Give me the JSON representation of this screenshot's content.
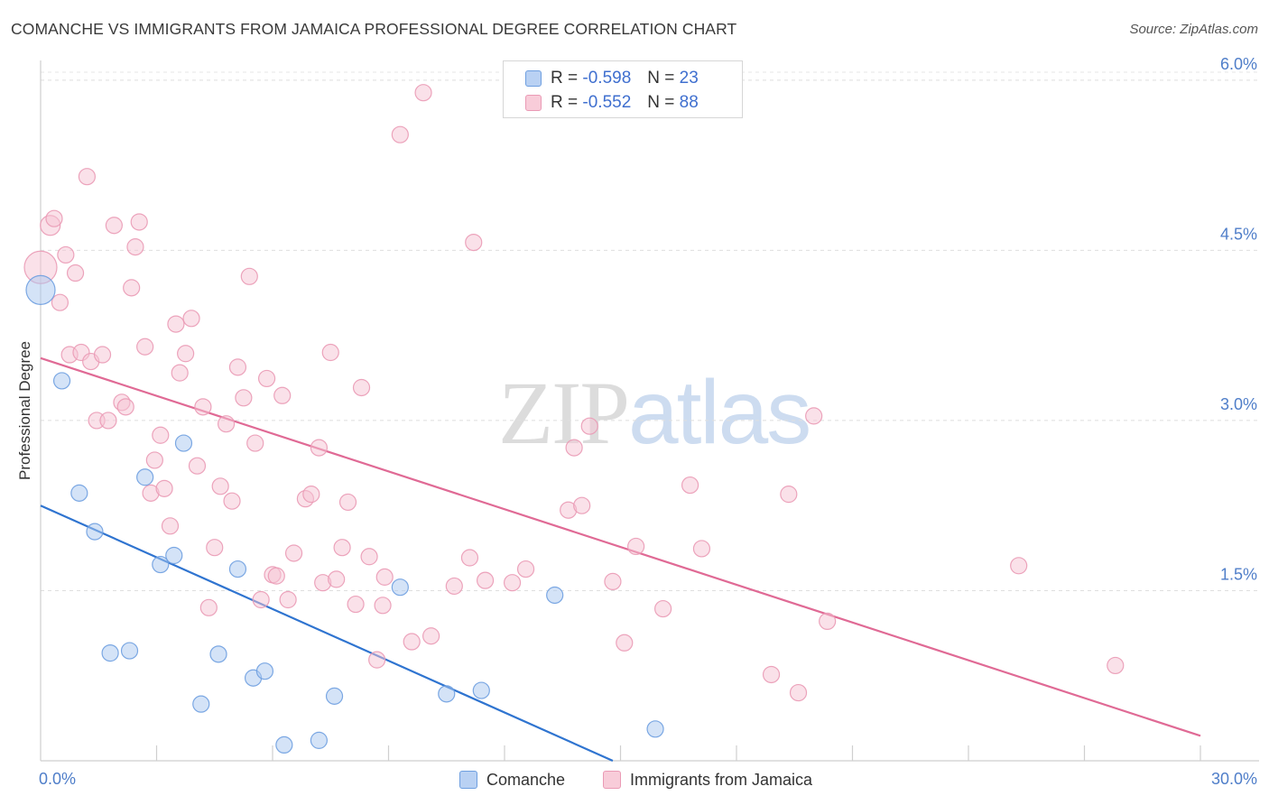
{
  "chart_data": {
    "type": "scatter",
    "title": "COMANCHE VS IMMIGRANTS FROM JAMAICA PROFESSIONAL DEGREE CORRELATION CHART",
    "source": "Source: ZipAtlas.com",
    "ylabel": "Professional Degree",
    "xlabel": "",
    "xlim": [
      0,
      30
    ],
    "ylim": [
      0,
      6.15
    ],
    "x_tick_labels": [
      "0.0%",
      "30.0%"
    ],
    "y_ticks": [
      {
        "value": 1.5,
        "label": "1.5%"
      },
      {
        "value": 3.0,
        "label": "3.0%"
      },
      {
        "value": 4.5,
        "label": "4.5%"
      },
      {
        "value": 6.0,
        "label": "6.0%"
      }
    ],
    "grid": "horizontal dashed",
    "watermark": {
      "part1": "ZIP",
      "part2": "atlas"
    },
    "legend": [
      {
        "r_label": "R =",
        "r_value": "-0.598",
        "n_label": "N =",
        "n_value": "23"
      },
      {
        "r_label": "R =",
        "r_value": "-0.552",
        "n_label": "N =",
        "n_value": "88"
      }
    ],
    "series": [
      {
        "name": "Comanche",
        "color": "#6e9fe0",
        "fill": "#a9c8f0",
        "line_color": "#2f74d0",
        "trend": [
          [
            0,
            2.25
          ],
          [
            14.8,
            0.0
          ]
        ],
        "points": [
          [
            0.0,
            4.15
          ],
          [
            0.55,
            3.35
          ],
          [
            1.0,
            2.36
          ],
          [
            1.4,
            2.02
          ],
          [
            1.8,
            0.95
          ],
          [
            2.3,
            0.97
          ],
          [
            2.7,
            2.5
          ],
          [
            3.1,
            1.73
          ],
          [
            3.45,
            1.81
          ],
          [
            3.7,
            2.8
          ],
          [
            4.15,
            0.5
          ],
          [
            4.6,
            0.94
          ],
          [
            5.1,
            1.69
          ],
          [
            5.5,
            0.73
          ],
          [
            5.8,
            0.79
          ],
          [
            6.3,
            0.14
          ],
          [
            7.2,
            0.18
          ],
          [
            7.6,
            0.57
          ],
          [
            9.3,
            1.53
          ],
          [
            10.5,
            0.59
          ],
          [
            11.4,
            0.62
          ],
          [
            13.3,
            1.46
          ],
          [
            15.9,
            0.28
          ]
        ]
      },
      {
        "name": "Immigrants from Jamaica",
        "color": "#ea9ab5",
        "fill": "#f6c3d3",
        "line_color": "#e06a95",
        "trend": [
          [
            0,
            3.55
          ],
          [
            30,
            0.22
          ]
        ],
        "points": [
          [
            0.0,
            4.35
          ],
          [
            0.25,
            4.72
          ],
          [
            0.35,
            4.78
          ],
          [
            0.5,
            4.04
          ],
          [
            0.65,
            4.46
          ],
          [
            0.9,
            4.3
          ],
          [
            1.2,
            5.15
          ],
          [
            0.75,
            3.58
          ],
          [
            1.05,
            3.6
          ],
          [
            1.3,
            3.52
          ],
          [
            1.45,
            3.0
          ],
          [
            1.6,
            3.58
          ],
          [
            1.75,
            3.0
          ],
          [
            1.9,
            4.72
          ],
          [
            2.1,
            3.16
          ],
          [
            2.2,
            3.12
          ],
          [
            2.35,
            4.17
          ],
          [
            2.45,
            4.53
          ],
          [
            2.55,
            4.75
          ],
          [
            2.7,
            3.65
          ],
          [
            2.85,
            2.36
          ],
          [
            2.95,
            2.65
          ],
          [
            3.1,
            2.87
          ],
          [
            3.2,
            2.4
          ],
          [
            3.35,
            2.07
          ],
          [
            3.5,
            3.85
          ],
          [
            3.6,
            3.42
          ],
          [
            3.75,
            3.59
          ],
          [
            3.9,
            3.9
          ],
          [
            4.05,
            2.6
          ],
          [
            4.2,
            3.12
          ],
          [
            4.35,
            1.35
          ],
          [
            4.5,
            1.88
          ],
          [
            4.65,
            2.42
          ],
          [
            4.8,
            2.97
          ],
          [
            4.95,
            2.29
          ],
          [
            5.1,
            3.47
          ],
          [
            5.25,
            3.2
          ],
          [
            5.4,
            4.27
          ],
          [
            5.55,
            2.8
          ],
          [
            5.7,
            1.42
          ],
          [
            5.85,
            3.37
          ],
          [
            6.0,
            1.64
          ],
          [
            6.1,
            1.63
          ],
          [
            6.25,
            3.22
          ],
          [
            6.4,
            1.42
          ],
          [
            6.55,
            1.83
          ],
          [
            6.85,
            2.31
          ],
          [
            7.0,
            2.35
          ],
          [
            7.2,
            2.76
          ],
          [
            7.3,
            1.57
          ],
          [
            7.5,
            3.6
          ],
          [
            7.65,
            1.6
          ],
          [
            7.8,
            1.88
          ],
          [
            7.95,
            2.28
          ],
          [
            8.15,
            1.38
          ],
          [
            8.3,
            3.29
          ],
          [
            8.5,
            1.8
          ],
          [
            8.7,
            0.89
          ],
          [
            8.85,
            1.37
          ],
          [
            8.9,
            1.62
          ],
          [
            9.3,
            5.52
          ],
          [
            9.6,
            1.05
          ],
          [
            9.9,
            5.89
          ],
          [
            10.1,
            1.1
          ],
          [
            10.7,
            1.54
          ],
          [
            11.1,
            1.79
          ],
          [
            11.2,
            4.57
          ],
          [
            11.5,
            1.59
          ],
          [
            12.2,
            1.57
          ],
          [
            12.55,
            1.69
          ],
          [
            13.65,
            2.21
          ],
          [
            13.8,
            2.76
          ],
          [
            14.0,
            2.25
          ],
          [
            14.2,
            2.95
          ],
          [
            14.8,
            1.58
          ],
          [
            15.1,
            1.04
          ],
          [
            15.4,
            1.89
          ],
          [
            16.1,
            1.34
          ],
          [
            16.8,
            2.43
          ],
          [
            17.1,
            1.87
          ],
          [
            18.9,
            0.76
          ],
          [
            19.35,
            2.35
          ],
          [
            19.6,
            0.6
          ],
          [
            20.0,
            3.04
          ],
          [
            20.35,
            1.23
          ],
          [
            25.3,
            1.72
          ],
          [
            27.8,
            0.84
          ]
        ]
      }
    ]
  }
}
